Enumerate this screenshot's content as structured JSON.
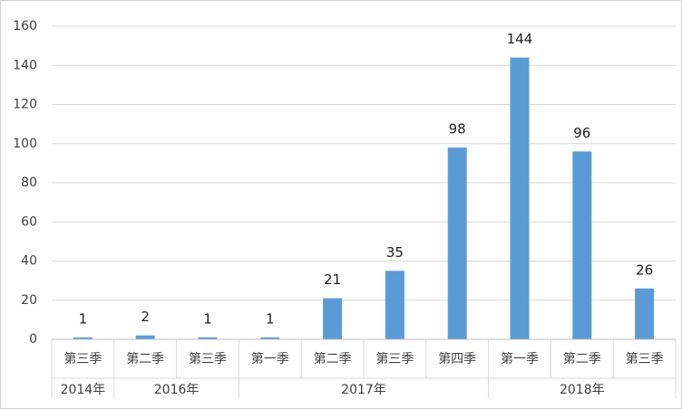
{
  "chart_data": {
    "type": "bar",
    "categories": [
      "第三季",
      "第二季",
      "第三季",
      "第一季",
      "第二季",
      "第三季",
      "第四季",
      "第一季",
      "第二季",
      "第三季"
    ],
    "category_groups": [
      "2014年",
      "2016年",
      null,
      "2017年",
      null,
      null,
      null,
      "2018年",
      null,
      null
    ],
    "values": [
      1,
      2,
      1,
      1,
      21,
      35,
      98,
      144,
      96,
      26
    ],
    "color": "#5b9bd5",
    "ylim": [
      0,
      160
    ],
    "yticks": [
      0,
      20,
      40,
      60,
      80,
      100,
      120,
      140,
      160
    ],
    "grid": true
  }
}
